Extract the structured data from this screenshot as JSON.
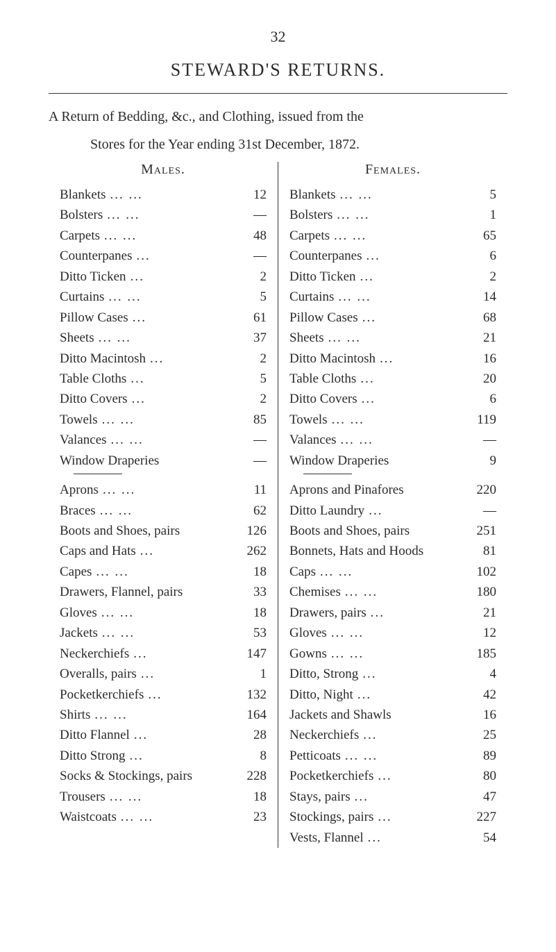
{
  "page_number": "32",
  "title": "STEWARD'S RETURNS.",
  "intro_line1": "A Return of Bedding, &c., and Clothing, issued from the",
  "intro_line2": "Stores for the Year ending 31st December, 1872.",
  "left": {
    "header": "Males.",
    "section1": [
      {
        "label": "Blankets",
        "dots": "...     ...",
        "value": "12"
      },
      {
        "label": "Bolsters",
        "dots": "...     ...",
        "value": "—"
      },
      {
        "label": "Carpets",
        "dots": "...     ...",
        "value": "48"
      },
      {
        "label": "Counterpanes",
        "dots": "...",
        "value": "—"
      },
      {
        "label": "Ditto Ticken",
        "dots": "...",
        "value": "2"
      },
      {
        "label": "Curtains",
        "dots": "...     ...",
        "value": "5"
      },
      {
        "label": "Pillow Cases",
        "dots": "...",
        "value": "61"
      },
      {
        "label": "Sheets",
        "dots": "...     ...",
        "value": "37"
      },
      {
        "label": "Ditto Macintosh",
        "dots": "...",
        "value": "2"
      },
      {
        "label": "Table Cloths",
        "dots": "...",
        "value": "5"
      },
      {
        "label": "Ditto Covers",
        "dots": "...",
        "value": "2"
      },
      {
        "label": "Towels",
        "dots": "...     ...",
        "value": "85"
      },
      {
        "label": "Valances",
        "dots": "...     ...",
        "value": "—"
      },
      {
        "label": "Window Draperies",
        "dots": "",
        "value": "—"
      }
    ],
    "section2": [
      {
        "label": "Aprons",
        "dots": "...     ...",
        "value": "11"
      },
      {
        "label": "Braces",
        "dots": "...     ...",
        "value": "62"
      },
      {
        "label": "Boots and Shoes, pairs",
        "dots": "",
        "value": "126"
      },
      {
        "label": "Caps and Hats",
        "dots": "...",
        "value": "262"
      },
      {
        "label": "Capes",
        "dots": "...     ...",
        "value": "18"
      },
      {
        "label": "Drawers, Flannel, pairs",
        "dots": "",
        "value": "33"
      },
      {
        "label": "Gloves",
        "dots": "...     ...",
        "value": "18"
      },
      {
        "label": "Jackets",
        "dots": "...     ...",
        "value": "53"
      },
      {
        "label": "Neckerchiefs",
        "dots": "...",
        "value": "147"
      },
      {
        "label": "Overalls, pairs",
        "dots": "...",
        "value": "1"
      },
      {
        "label": "Pocketkerchiefs",
        "dots": "...",
        "value": "132"
      },
      {
        "label": "Shirts",
        "dots": "...     ...",
        "value": "164"
      },
      {
        "label": "Ditto Flannel",
        "dots": "...",
        "value": "28"
      },
      {
        "label": "Ditto Strong",
        "dots": "...",
        "value": "8"
      },
      {
        "label": "Socks & Stockings, pairs",
        "dots": "",
        "value": "228"
      },
      {
        "label": "Trousers",
        "dots": "...     ...",
        "value": "18"
      },
      {
        "label": "Waistcoats",
        "dots": "...     ...",
        "value": "23"
      }
    ]
  },
  "right": {
    "header": "Females.",
    "section1": [
      {
        "label": "Blankets",
        "dots": "...     ...",
        "value": "5"
      },
      {
        "label": "Bolsters",
        "dots": "...     ...",
        "value": "1"
      },
      {
        "label": "Carpets",
        "dots": "...     ...",
        "value": "65"
      },
      {
        "label": "Counterpanes",
        "dots": "...",
        "value": "6"
      },
      {
        "label": "Ditto Ticken",
        "dots": "...",
        "value": "2"
      },
      {
        "label": "Curtains",
        "dots": "...     ...",
        "value": "14"
      },
      {
        "label": "Pillow Cases",
        "dots": "...",
        "value": "68"
      },
      {
        "label": "Sheets",
        "dots": "...     ...",
        "value": "21"
      },
      {
        "label": "Ditto Macintosh",
        "dots": "...",
        "value": "16"
      },
      {
        "label": "Table Cloths",
        "dots": "...",
        "value": "20"
      },
      {
        "label": "Ditto Covers",
        "dots": "...",
        "value": "6"
      },
      {
        "label": "Towels",
        "dots": "...     ...",
        "value": "119"
      },
      {
        "label": "Valances",
        "dots": "...     ...",
        "value": "—"
      },
      {
        "label": "Window Draperies",
        "dots": "",
        "value": "9"
      }
    ],
    "section2": [
      {
        "label": "Aprons and Pinafores",
        "dots": "",
        "value": "220"
      },
      {
        "label": "Ditto Laundry",
        "dots": "...",
        "value": "—"
      },
      {
        "label": "Boots and Shoes, pairs",
        "dots": "",
        "value": "251"
      },
      {
        "label": "Bonnets, Hats and Hoods",
        "dots": "",
        "value": "81"
      },
      {
        "label": "Caps",
        "dots": "...     ...",
        "value": "102"
      },
      {
        "label": "Chemises",
        "dots": "...     ...",
        "value": "180"
      },
      {
        "label": "Drawers, pairs",
        "dots": "...",
        "value": "21"
      },
      {
        "label": "Gloves",
        "dots": "...     ...",
        "value": "12"
      },
      {
        "label": "Gowns",
        "dots": "...     ...",
        "value": "185"
      },
      {
        "label": "Ditto, Strong",
        "dots": "...",
        "value": "4"
      },
      {
        "label": "Ditto, Night",
        "dots": "...",
        "value": "42"
      },
      {
        "label": "Jackets and Shawls",
        "dots": "",
        "value": "16"
      },
      {
        "label": "Neckerchiefs",
        "dots": "...",
        "value": "25"
      },
      {
        "label": "Petticoats",
        "dots": "...     ...",
        "value": "89"
      },
      {
        "label": "Pocketkerchiefs",
        "dots": "...",
        "value": "80"
      },
      {
        "label": "Stays, pairs",
        "dots": "...",
        "value": "47"
      },
      {
        "label": "Stockings, pairs",
        "dots": "...",
        "value": "227"
      },
      {
        "label": "Vests, Flannel",
        "dots": "...",
        "value": "54"
      }
    ]
  }
}
